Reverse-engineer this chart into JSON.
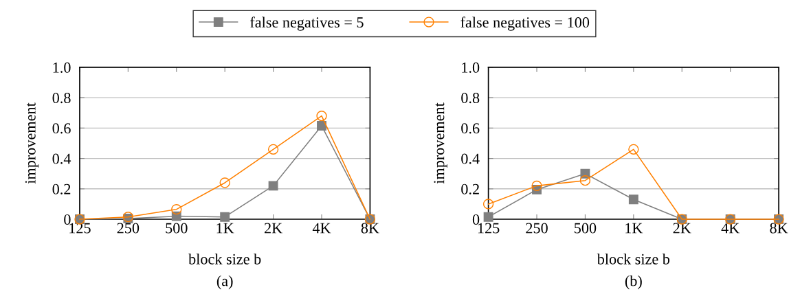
{
  "chart_data": [
    {
      "type": "line",
      "xlabel": "block size b",
      "ylabel": "improvement",
      "categories": [
        "125",
        "250",
        "500",
        "1K",
        "2K",
        "4K",
        "8K"
      ],
      "ylim": [
        0,
        1.0
      ],
      "yticks": [
        0,
        0.2,
        0.4,
        0.6,
        0.8,
        {
          "value": 1.0,
          "label": "1.0"
        }
      ],
      "grid": "y",
      "legend": "top",
      "line_style": "solid",
      "annotations": [
        "(a)"
      ],
      "series": [
        {
          "name": "false negatives = 5",
          "color": "#7f7f7f",
          "marker": "square",
          "values": [
            0,
            0.005,
            0.02,
            0.015,
            0.22,
            0.615,
            0
          ]
        },
        {
          "name": "false negatives = 100",
          "color": "#ff8000",
          "marker": "circle",
          "values": [
            0,
            0.015,
            0.065,
            0.24,
            0.46,
            0.68,
            0
          ]
        }
      ]
    },
    {
      "type": "line",
      "xlabel": "block size b",
      "ylabel": "improvement",
      "categories": [
        "125",
        "250",
        "500",
        "1K",
        "2K",
        "4K",
        "8K"
      ],
      "ylim": [
        0,
        1.0
      ],
      "yticks": [
        0,
        0.2,
        0.4,
        0.6,
        0.8,
        {
          "value": 1.0,
          "label": "1.0"
        }
      ],
      "grid": "y",
      "line_style": "solid",
      "annotations": [
        "(b)"
      ],
      "series": [
        {
          "color": "#7f7f7f",
          "marker": "square",
          "values": [
            0.015,
            0.195,
            0.3,
            0.13,
            0,
            0,
            0
          ]
        },
        {
          "color": "#ff8000",
          "marker": "circle",
          "values": [
            0.1,
            0.22,
            0.255,
            0.46,
            0,
            0,
            0
          ]
        }
      ]
    }
  ]
}
